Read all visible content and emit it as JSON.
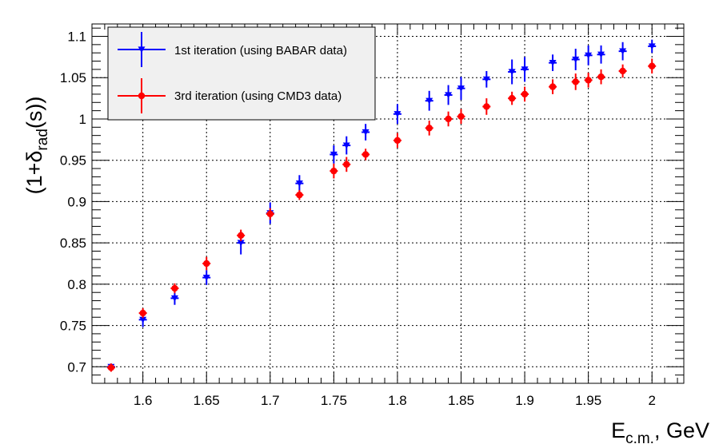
{
  "chart_data": {
    "type": "scatter",
    "title": "",
    "xlabel": "E",
    "xlabel_sub": "c.m.",
    "xlabel_suffix": ", GeV",
    "ylabel_prefix": "(1+",
    "ylabel_symbol": "δ",
    "ylabel_sub": "rad",
    "ylabel_suffix": "(s))",
    "xlim": [
      1.56,
      2.025
    ],
    "ylim": [
      0.68,
      1.115
    ],
    "grid": true,
    "legend_position": "top-left",
    "x_ticks": [
      1.6,
      1.65,
      1.7,
      1.75,
      1.8,
      1.85,
      1.9,
      1.95,
      2.0
    ],
    "x_tick_labels": [
      "1.6",
      "1.65",
      "1.7",
      "1.75",
      "1.8",
      "1.85",
      "1.9",
      "1.95",
      "2"
    ],
    "y_ticks": [
      0.7,
      0.75,
      0.8,
      0.85,
      0.9,
      0.95,
      1.0,
      1.05,
      1.1
    ],
    "y_tick_labels": [
      "0.7",
      "0.75",
      "0.8",
      "0.85",
      "0.9",
      "0.95",
      "1",
      "1.05",
      "1.1"
    ],
    "series": [
      {
        "name": "1st iteration (using BABAR data)",
        "color": "#0000ff",
        "marker": "triangle-down",
        "points": [
          {
            "x": 1.575,
            "y": 0.7,
            "err": 0.004
          },
          {
            "x": 1.6,
            "y": 0.757,
            "err": 0.009
          },
          {
            "x": 1.625,
            "y": 0.783,
            "err": 0.008
          },
          {
            "x": 1.65,
            "y": 0.808,
            "err": 0.009
          },
          {
            "x": 1.677,
            "y": 0.85,
            "err": 0.014
          },
          {
            "x": 1.7,
            "y": 0.886,
            "err": 0.013
          },
          {
            "x": 1.723,
            "y": 0.922,
            "err": 0.01
          },
          {
            "x": 1.75,
            "y": 0.957,
            "err": 0.011
          },
          {
            "x": 1.76,
            "y": 0.968,
            "err": 0.011
          },
          {
            "x": 1.775,
            "y": 0.984,
            "err": 0.01
          },
          {
            "x": 1.8,
            "y": 1.006,
            "err": 0.012
          },
          {
            "x": 1.825,
            "y": 1.022,
            "err": 0.012
          },
          {
            "x": 1.84,
            "y": 1.029,
            "err": 0.012
          },
          {
            "x": 1.85,
            "y": 1.037,
            "err": 0.014
          },
          {
            "x": 1.87,
            "y": 1.048,
            "err": 0.01
          },
          {
            "x": 1.89,
            "y": 1.057,
            "err": 0.015
          },
          {
            "x": 1.9,
            "y": 1.06,
            "err": 0.015
          },
          {
            "x": 1.922,
            "y": 1.068,
            "err": 0.01
          },
          {
            "x": 1.94,
            "y": 1.072,
            "err": 0.013
          },
          {
            "x": 1.95,
            "y": 1.077,
            "err": 0.012
          },
          {
            "x": 1.96,
            "y": 1.078,
            "err": 0.011
          },
          {
            "x": 1.977,
            "y": 1.082,
            "err": 0.011
          },
          {
            "x": 2.0,
            "y": 1.088,
            "err": 0.008
          }
        ]
      },
      {
        "name": "3rd iteration (using CMD3 data)",
        "color": "#ff0000",
        "marker": "circle",
        "points": [
          {
            "x": 1.575,
            "y": 0.699,
            "err": 0.005
          },
          {
            "x": 1.6,
            "y": 0.765,
            "err": 0.006
          },
          {
            "x": 1.625,
            "y": 0.795,
            "err": 0.006
          },
          {
            "x": 1.65,
            "y": 0.825,
            "err": 0.008
          },
          {
            "x": 1.677,
            "y": 0.859,
            "err": 0.007
          },
          {
            "x": 1.7,
            "y": 0.885,
            "err": 0.007
          },
          {
            "x": 1.723,
            "y": 0.908,
            "err": 0.006
          },
          {
            "x": 1.75,
            "y": 0.937,
            "err": 0.009
          },
          {
            "x": 1.76,
            "y": 0.945,
            "err": 0.009
          },
          {
            "x": 1.775,
            "y": 0.957,
            "err": 0.007
          },
          {
            "x": 1.8,
            "y": 0.974,
            "err": 0.009
          },
          {
            "x": 1.825,
            "y": 0.989,
            "err": 0.009
          },
          {
            "x": 1.84,
            "y": 1.0,
            "err": 0.009
          },
          {
            "x": 1.85,
            "y": 1.003,
            "err": 0.009
          },
          {
            "x": 1.87,
            "y": 1.015,
            "err": 0.01
          },
          {
            "x": 1.89,
            "y": 1.025,
            "err": 0.008
          },
          {
            "x": 1.9,
            "y": 1.03,
            "err": 0.009
          },
          {
            "x": 1.922,
            "y": 1.039,
            "err": 0.009
          },
          {
            "x": 1.94,
            "y": 1.045,
            "err": 0.01
          },
          {
            "x": 1.95,
            "y": 1.047,
            "err": 0.009
          },
          {
            "x": 1.96,
            "y": 1.051,
            "err": 0.009
          },
          {
            "x": 1.977,
            "y": 1.058,
            "err": 0.008
          },
          {
            "x": 2.0,
            "y": 1.064,
            "err": 0.009
          }
        ]
      }
    ]
  }
}
